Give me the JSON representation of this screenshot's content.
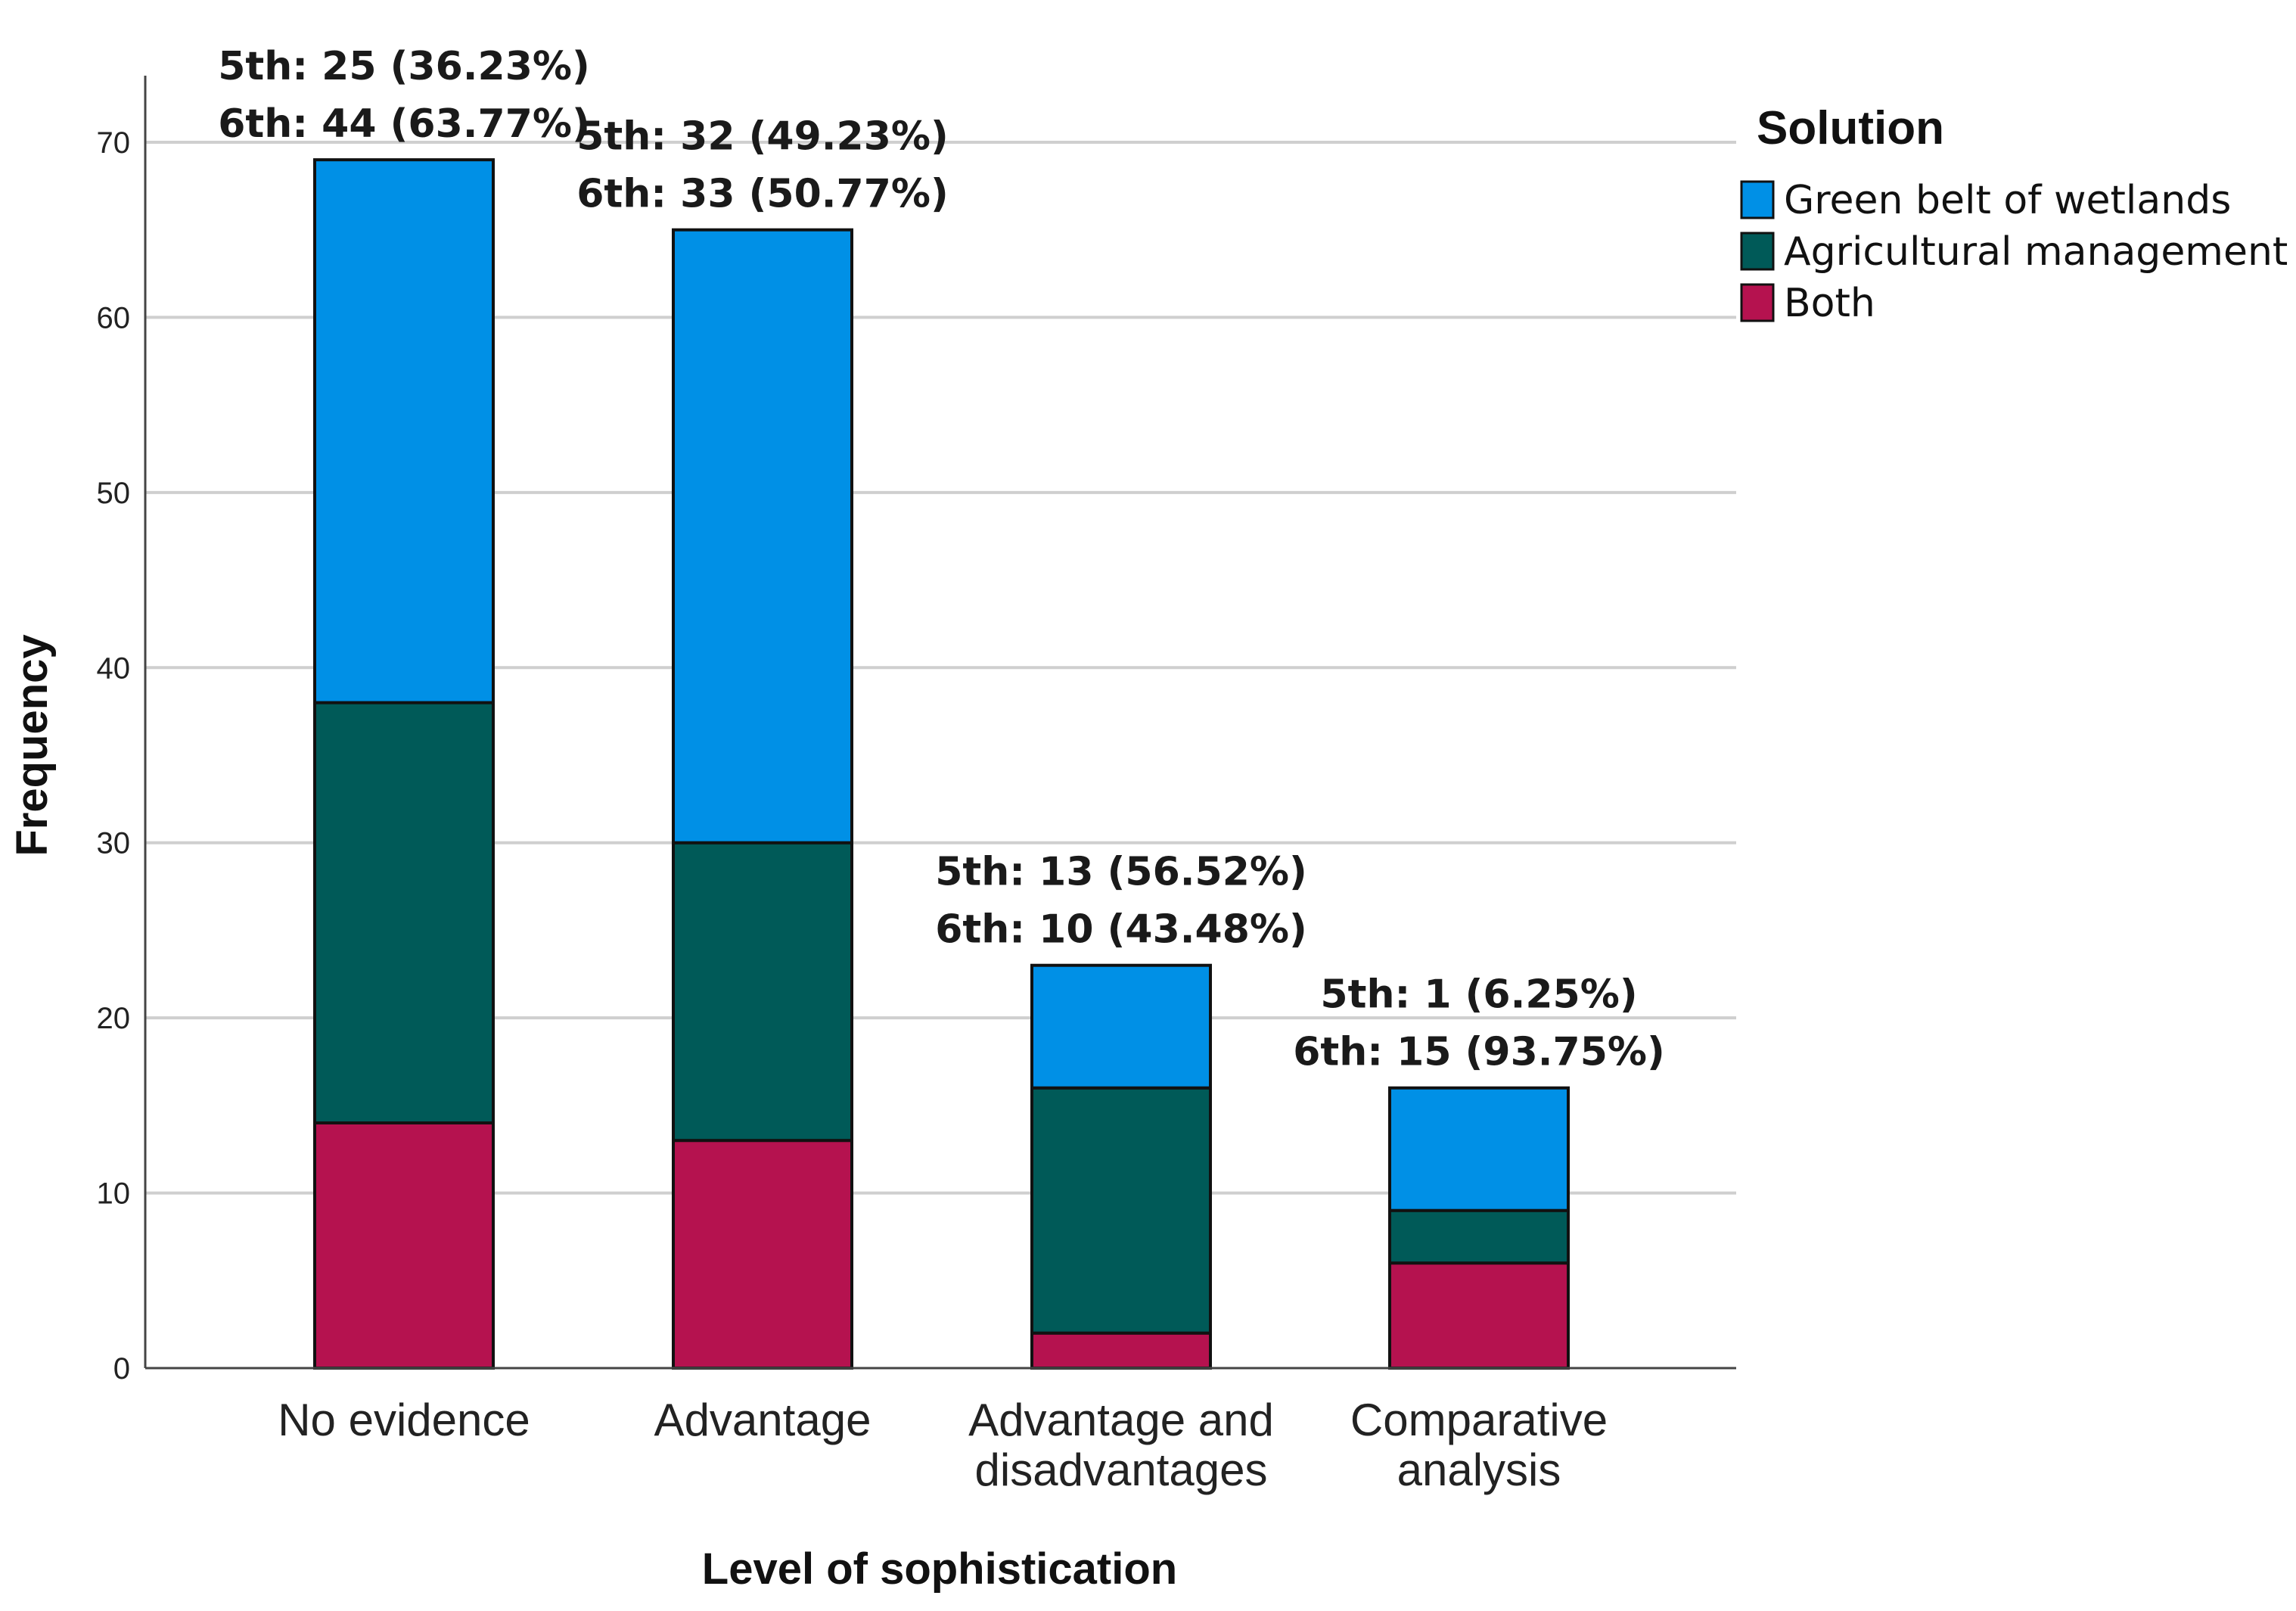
{
  "chart_data": {
    "type": "bar",
    "stacked": true,
    "xlabel": "Level of sophistication",
    "ylabel": "Frequency",
    "ylim": [
      0,
      70
    ],
    "yticks": [
      0,
      10,
      20,
      30,
      40,
      50,
      60,
      70
    ],
    "grid": true,
    "categories": [
      [
        "No evidence"
      ],
      [
        "Advantage"
      ],
      [
        "Advantage and",
        "disadvantages"
      ],
      [
        "Comparative",
        "analysis"
      ]
    ],
    "series": [
      {
        "name": "Both",
        "color": "#b5124f",
        "values": [
          14,
          13,
          2,
          6
        ]
      },
      {
        "name": "Agricultural management",
        "color": "#005a58",
        "values": [
          24,
          17,
          14,
          3
        ]
      },
      {
        "name": "Green belt of wetlands",
        "color": "#0090e6",
        "values": [
          31,
          35,
          7,
          7
        ]
      }
    ],
    "legend": {
      "title": "Solution",
      "placement": "top-right",
      "order": [
        "Green belt of wetlands",
        "Agricultural management",
        "Both"
      ]
    },
    "annotations": [
      [
        "5th: 25 (36.23%)",
        "6th: 44 (63.77%)"
      ],
      [
        "5th: 32 (49.23%)",
        "6th: 33 (50.77%)"
      ],
      [
        "5th: 13 (56.52%)",
        "6th: 10 (43.48%)"
      ],
      [
        "5th: 1 (6.25%)",
        "6th: 15 (93.75%)"
      ]
    ]
  }
}
